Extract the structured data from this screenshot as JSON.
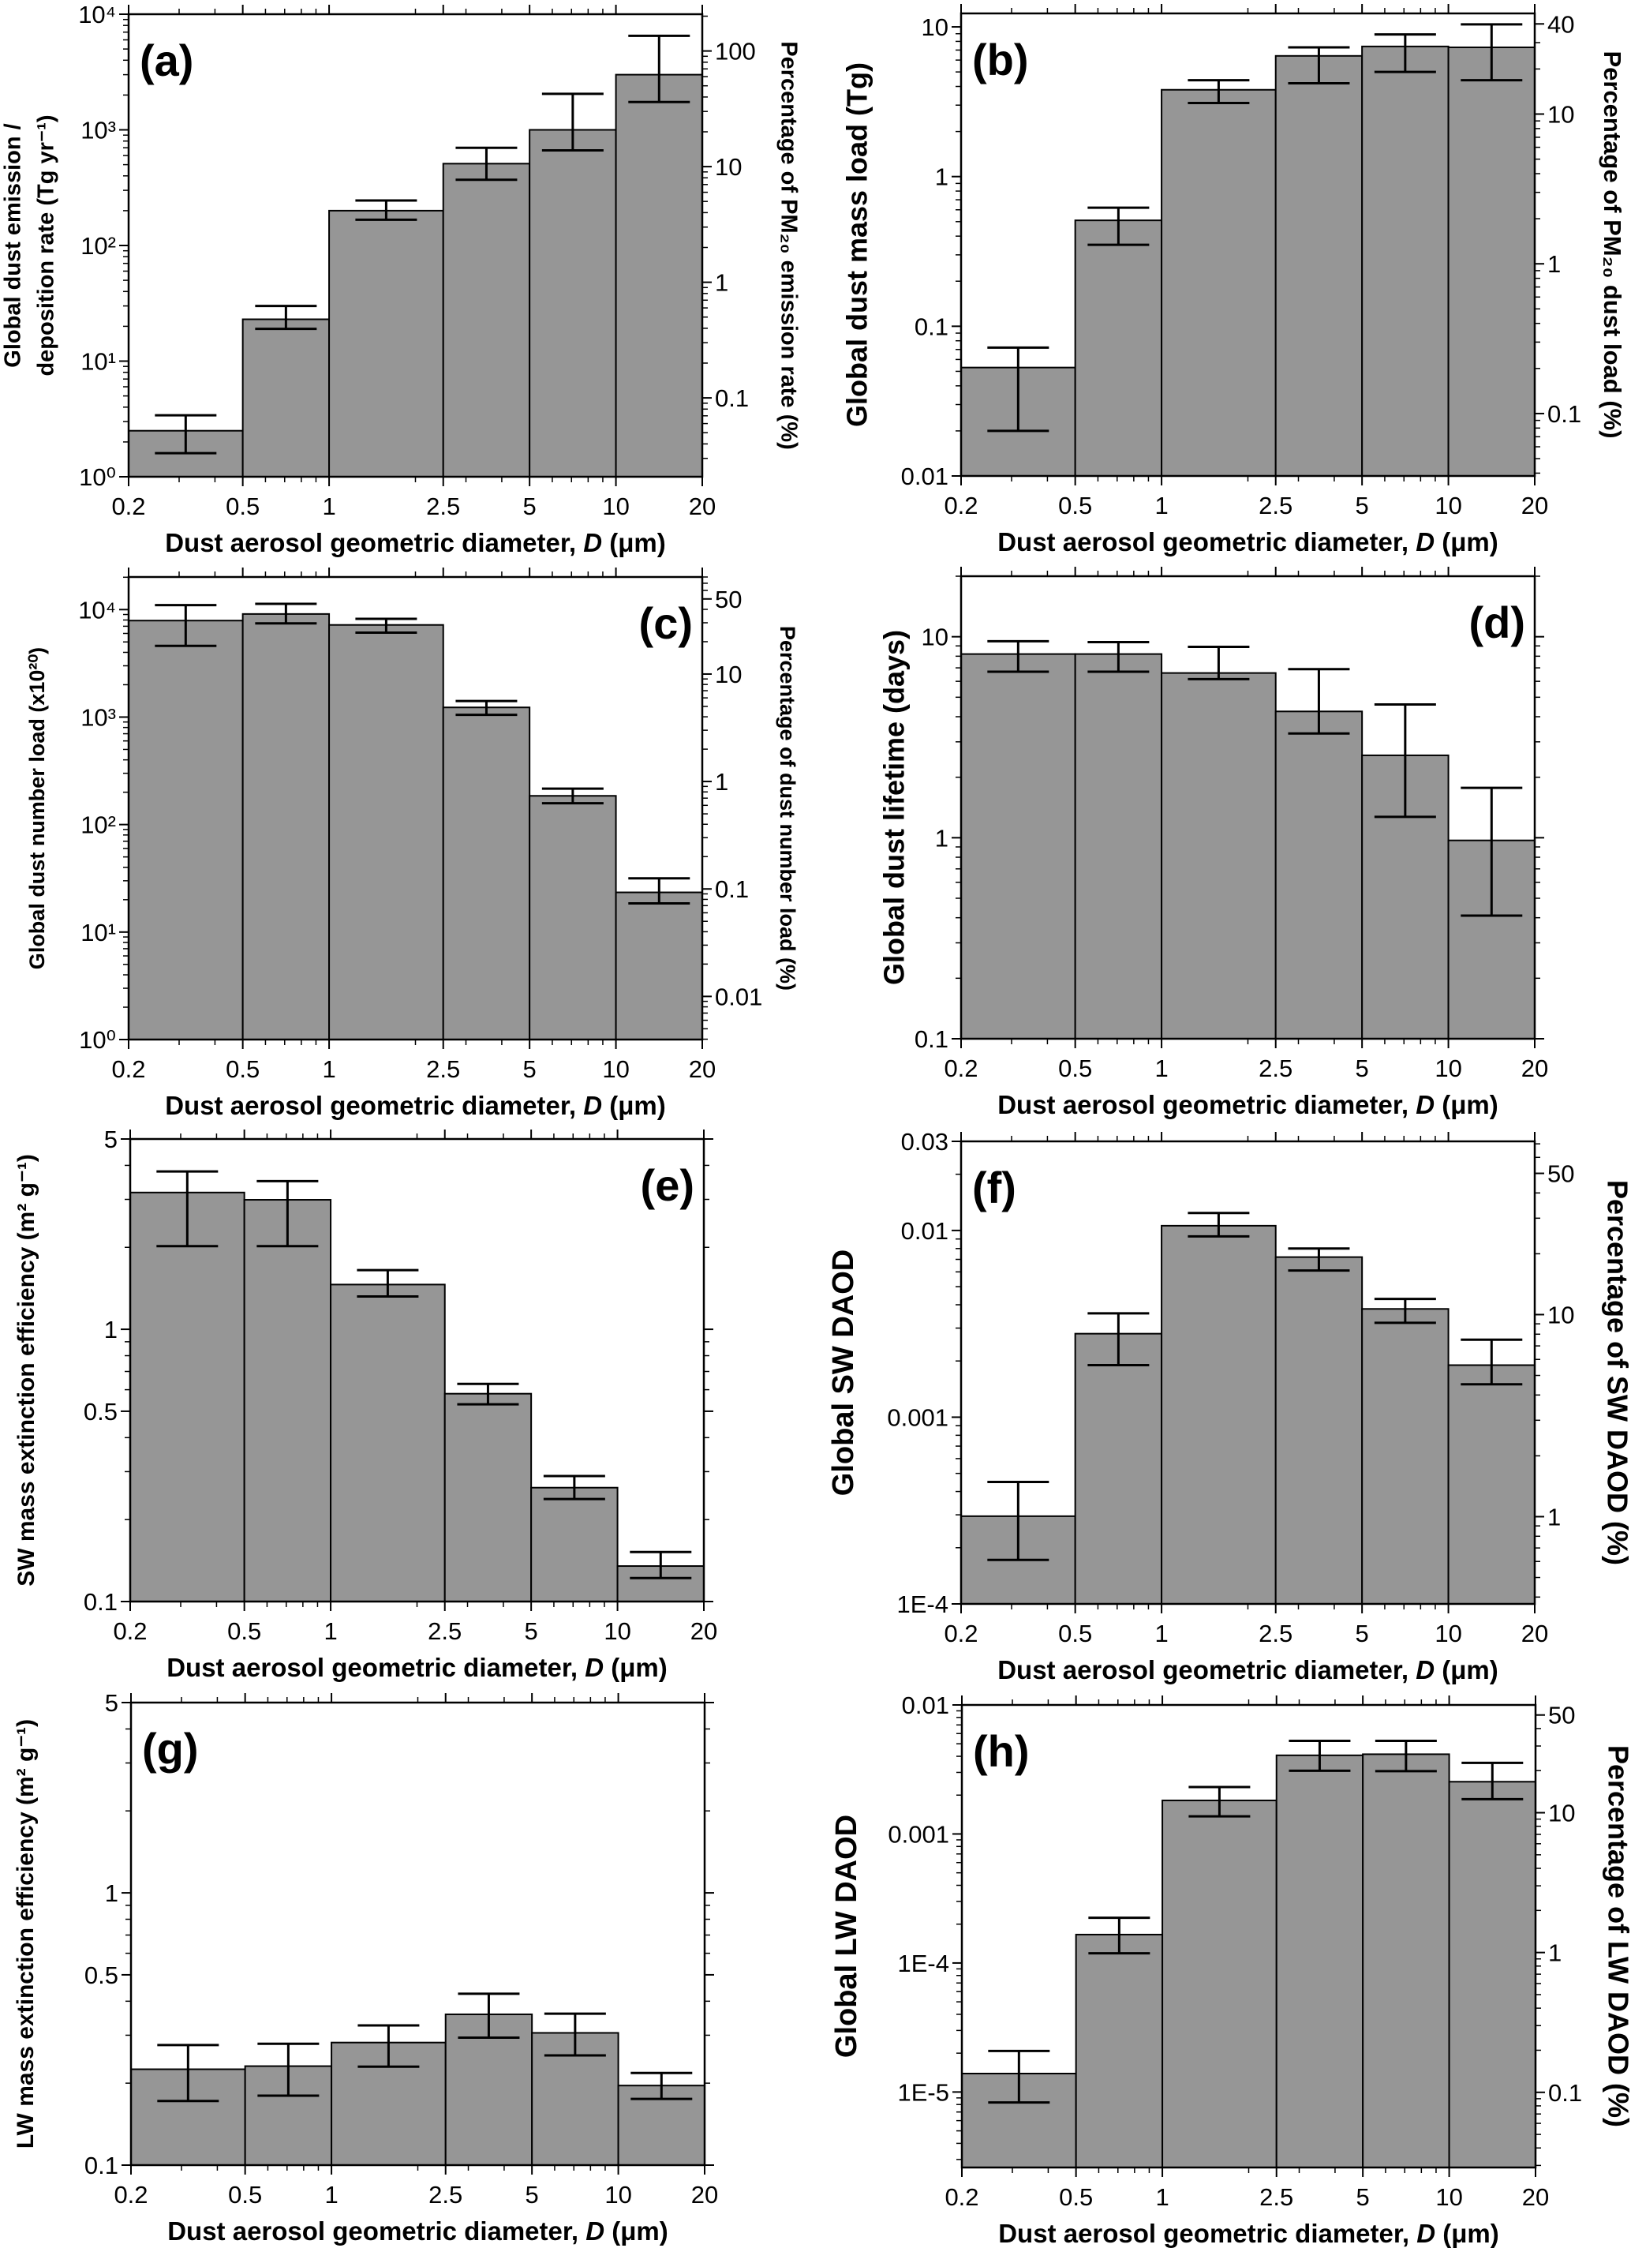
{
  "colors": {
    "bar_fill": "#969696",
    "bar_stroke": "#000000",
    "axis": "#000000",
    "background": "#ffffff"
  },
  "chart_data": [
    {
      "panel": "(a)",
      "type": "bar",
      "label_position": "top-left",
      "bin_edges": [
        0.2,
        0.5,
        1,
        2.5,
        5,
        10,
        20
      ],
      "values": [
        2.5,
        23,
        200,
        510,
        1000,
        3000
      ],
      "err_low": [
        1.6,
        19,
        167,
        370,
        665,
        1740
      ],
      "err_high": [
        3.4,
        30,
        245,
        700,
        2050,
        6500
      ],
      "xlim": [
        0.2,
        20
      ],
      "xscale": "log",
      "xticks": [
        {
          "value": 0.2,
          "label": "0.2"
        },
        {
          "value": 0.5,
          "label": "0.5"
        },
        {
          "value": 1,
          "label": "1"
        },
        {
          "value": 2.5,
          "label": "2.5"
        },
        {
          "value": 5,
          "label": "5"
        },
        {
          "value": 10,
          "label": "10"
        },
        {
          "value": 20,
          "label": "20"
        }
      ],
      "xlabel": [
        {
          "text": "Dust aerosol geometric diameter, ",
          "italic": false
        },
        {
          "text": "D",
          "italic": true
        },
        {
          "text": " (μm)",
          "italic": false
        }
      ],
      "ylabel": [
        "Global dust emission /",
        "deposition rate (Tg yr⁻¹)"
      ],
      "ylim": [
        1,
        10000
      ],
      "yscale": "log",
      "yticks": [
        {
          "value": 1,
          "label": "10⁰"
        },
        {
          "value": 10,
          "label": "10¹"
        },
        {
          "value": 100,
          "label": "10²"
        },
        {
          "value": 1000,
          "label": "10³"
        },
        {
          "value": 10000,
          "label": "10⁴"
        }
      ],
      "y2label": "Percentage of PM₂₀ emission rate (%)",
      "y2lim": [
        0.0208,
        208
      ],
      "y2ticks": [
        {
          "value": 0.1,
          "label": "0.1"
        },
        {
          "value": 1,
          "label": "1"
        },
        {
          "value": 10,
          "label": "10"
        },
        {
          "value": 100,
          "label": "100"
        }
      ]
    },
    {
      "panel": "(b)",
      "type": "bar",
      "label_position": "top-left",
      "bin_edges": [
        0.2,
        0.5,
        1,
        2.5,
        5,
        10,
        20
      ],
      "values": [
        0.053,
        0.51,
        3.8,
        6.4,
        7.4,
        7.3
      ],
      "err_low": [
        0.02,
        0.35,
        3.1,
        4.2,
        5.0,
        4.4
      ],
      "err_high": [
        0.072,
        0.62,
        4.4,
        7.3,
        8.9,
        10.4
      ],
      "xlim": [
        0.2,
        20
      ],
      "xscale": "log",
      "xticks": [
        {
          "value": 0.2,
          "label": "0.2"
        },
        {
          "value": 0.5,
          "label": "0.5"
        },
        {
          "value": 1,
          "label": "1"
        },
        {
          "value": 2.5,
          "label": "2.5"
        },
        {
          "value": 5,
          "label": "5"
        },
        {
          "value": 10,
          "label": "10"
        },
        {
          "value": 20,
          "label": "20"
        }
      ],
      "xlabel": [
        {
          "text": "Dust aerosol geometric diameter, ",
          "italic": false
        },
        {
          "text": "D",
          "italic": true
        },
        {
          "text": " (μm)",
          "italic": false
        }
      ],
      "ylabel": [
        "Global dust mass load (Tg)"
      ],
      "ylim": [
        0.01,
        12.3
      ],
      "yscale": "log",
      "yticks": [
        {
          "value": 0.01,
          "label": "0.01"
        },
        {
          "value": 0.1,
          "label": "0.1"
        },
        {
          "value": 1,
          "label": "1"
        },
        {
          "value": 10,
          "label": "10"
        }
      ],
      "y2label": "Percentage of PM₂₀ dust load (%)",
      "y2lim": [
        0.0383,
        47
      ],
      "y2ticks": [
        {
          "value": 0.1,
          "label": "0.1"
        },
        {
          "value": 1,
          "label": "1"
        },
        {
          "value": 10,
          "label": "10"
        },
        {
          "value": 40,
          "label": "40"
        }
      ]
    },
    {
      "panel": "(c)",
      "type": "bar",
      "label_position": "top-right",
      "bin_edges": [
        0.2,
        0.5,
        1,
        2.5,
        5,
        10,
        20
      ],
      "values": [
        7900,
        9100,
        7200,
        1230,
        185,
        23.4
      ],
      "err_low": [
        4600,
        7450,
        6100,
        1050,
        158,
        18.5
      ],
      "err_high": [
        11000,
        11300,
        8200,
        1410,
        216,
        31.6
      ],
      "xlim": [
        0.2,
        20
      ],
      "xscale": "log",
      "xticks": [
        {
          "value": 0.2,
          "label": "0.2"
        },
        {
          "value": 0.5,
          "label": "0.5"
        },
        {
          "value": 1,
          "label": "1"
        },
        {
          "value": 2.5,
          "label": "2.5"
        },
        {
          "value": 5,
          "label": "5"
        },
        {
          "value": 10,
          "label": "10"
        },
        {
          "value": 20,
          "label": "20"
        }
      ],
      "xlabel": [
        {
          "text": "Dust aerosol geometric diameter, ",
          "italic": false
        },
        {
          "text": "D",
          "italic": true
        },
        {
          "text": " (μm)",
          "italic": false
        }
      ],
      "ylabel": [
        "Global dust number load (x10²⁰)"
      ],
      "ylim": [
        1,
        20100
      ],
      "yscale": "log",
      "yticks": [
        {
          "value": 1,
          "label": "10⁰"
        },
        {
          "value": 10,
          "label": "10¹"
        },
        {
          "value": 100,
          "label": "10²"
        },
        {
          "value": 1000,
          "label": "10³"
        },
        {
          "value": 10000,
          "label": "10⁴"
        }
      ],
      "y2label": "Percentage of dust number load (%)",
      "y2lim": [
        0.00397,
        80
      ],
      "y2ticks": [
        {
          "value": 0.01,
          "label": "0.01"
        },
        {
          "value": 0.1,
          "label": "0.1"
        },
        {
          "value": 1,
          "label": "1"
        },
        {
          "value": 10,
          "label": "10"
        },
        {
          "value": 50,
          "label": "50"
        }
      ]
    },
    {
      "panel": "(d)",
      "type": "bar",
      "label_position": "top-right",
      "bin_edges": [
        0.2,
        0.5,
        1,
        2.5,
        5,
        10,
        20
      ],
      "values": [
        8.2,
        8.2,
        6.6,
        4.25,
        2.57,
        0.97
      ],
      "err_low": [
        6.7,
        6.7,
        6.15,
        3.3,
        1.27,
        0.41
      ],
      "err_high": [
        9.5,
        9.4,
        8.9,
        6.9,
        4.6,
        1.77
      ],
      "xlim": [
        0.2,
        20
      ],
      "xscale": "log",
      "xticks": [
        {
          "value": 0.2,
          "label": "0.2"
        },
        {
          "value": 0.5,
          "label": "0.5"
        },
        {
          "value": 1,
          "label": "1"
        },
        {
          "value": 2.5,
          "label": "2.5"
        },
        {
          "value": 5,
          "label": "5"
        },
        {
          "value": 10,
          "label": "10"
        },
        {
          "value": 20,
          "label": "20"
        }
      ],
      "xlabel": [
        {
          "text": "Dust aerosol geometric diameter, ",
          "italic": false
        },
        {
          "text": "D",
          "italic": true
        },
        {
          "text": " (μm)",
          "italic": false
        }
      ],
      "ylabel": [
        "Global dust lifetime (days)"
      ],
      "ylim": [
        0.1,
        20
      ],
      "yscale": "log",
      "yticks": [
        {
          "value": 0.1,
          "label": "0.1"
        },
        {
          "value": 1,
          "label": "1"
        },
        {
          "value": 10,
          "label": "10"
        }
      ]
    },
    {
      "panel": "(e)",
      "type": "bar",
      "label_position": "top-right",
      "bin_edges": [
        0.2,
        0.5,
        1,
        2.5,
        5,
        10,
        20
      ],
      "values": [
        3.18,
        2.99,
        1.46,
        0.58,
        0.262,
        0.135
      ],
      "err_low": [
        2.02,
        2.02,
        1.32,
        0.53,
        0.238,
        0.122
      ],
      "err_high": [
        3.8,
        3.5,
        1.65,
        0.63,
        0.289,
        0.152
      ],
      "xlim": [
        0.2,
        20
      ],
      "xscale": "log",
      "xticks": [
        {
          "value": 0.2,
          "label": "0.2"
        },
        {
          "value": 0.5,
          "label": "0.5"
        },
        {
          "value": 1,
          "label": "1"
        },
        {
          "value": 2.5,
          "label": "2.5"
        },
        {
          "value": 5,
          "label": "5"
        },
        {
          "value": 10,
          "label": "10"
        },
        {
          "value": 20,
          "label": "20"
        }
      ],
      "xlabel": [
        {
          "text": "Dust aerosol geometric diameter, ",
          "italic": false
        },
        {
          "text": "D",
          "italic": true
        },
        {
          "text": " (μm)",
          "italic": false
        }
      ],
      "ylabel": [
        "SW mass extinction efficiency (m² g⁻¹)"
      ],
      "ylim": [
        0.1,
        5
      ],
      "yscale": "log",
      "yticks": [
        {
          "value": 0.1,
          "label": "0.1"
        },
        {
          "value": 0.5,
          "label": "0.5"
        },
        {
          "value": 1,
          "label": "1"
        },
        {
          "value": 5,
          "label": "5"
        }
      ]
    },
    {
      "panel": "(f)",
      "type": "bar",
      "label_position": "top-left",
      "bin_edges": [
        0.2,
        0.5,
        1,
        2.5,
        5,
        10,
        20
      ],
      "values": [
        0.000295,
        0.0028,
        0.0106,
        0.0072,
        0.0038,
        0.0019
      ],
      "err_low": [
        0.000172,
        0.0019,
        0.0093,
        0.0061,
        0.0032,
        0.0015
      ],
      "err_high": [
        0.00045,
        0.0036,
        0.0124,
        0.008,
        0.0043,
        0.0026
      ],
      "xlim": [
        0.2,
        20
      ],
      "xscale": "log",
      "xticks": [
        {
          "value": 0.2,
          "label": "0.2"
        },
        {
          "value": 0.5,
          "label": "0.5"
        },
        {
          "value": 1,
          "label": "1"
        },
        {
          "value": 2.5,
          "label": "2.5"
        },
        {
          "value": 5,
          "label": "5"
        },
        {
          "value": 10,
          "label": "10"
        },
        {
          "value": 20,
          "label": "20"
        }
      ],
      "xlabel": [
        {
          "text": "Dust aerosol geometric diameter, ",
          "italic": false
        },
        {
          "text": "D",
          "italic": true
        },
        {
          "text": " (μm)",
          "italic": false
        }
      ],
      "ylabel": [
        "Global SW DAOD"
      ],
      "ylim": [
        0.0001,
        0.03
      ],
      "yscale": "log",
      "yticks": [
        {
          "value": 0.0001,
          "label": "1E-4"
        },
        {
          "value": 0.001,
          "label": "0.001"
        },
        {
          "value": 0.01,
          "label": "0.01"
        },
        {
          "value": 0.03,
          "label": "0.03"
        }
      ],
      "y2label": "Percentage of SW DAOD (%)",
      "y2lim": [
        0.37,
        72
      ],
      "y2ticks": [
        {
          "value": 1,
          "label": "1"
        },
        {
          "value": 10,
          "label": "10"
        },
        {
          "value": 50,
          "label": "50"
        }
      ]
    },
    {
      "panel": "(g)",
      "type": "bar",
      "label_position": "top-left",
      "bin_edges": [
        0.2,
        0.5,
        1,
        2.5,
        5,
        10,
        20
      ],
      "values": [
        0.225,
        0.231,
        0.282,
        0.358,
        0.306,
        0.196
      ],
      "err_low": [
        0.172,
        0.18,
        0.23,
        0.294,
        0.253,
        0.175
      ],
      "err_high": [
        0.276,
        0.279,
        0.326,
        0.426,
        0.36,
        0.218
      ],
      "xlim": [
        0.2,
        20
      ],
      "xscale": "log",
      "xticks": [
        {
          "value": 0.2,
          "label": "0.2"
        },
        {
          "value": 0.5,
          "label": "0.5"
        },
        {
          "value": 1,
          "label": "1"
        },
        {
          "value": 2.5,
          "label": "2.5"
        },
        {
          "value": 5,
          "label": "5"
        },
        {
          "value": 10,
          "label": "10"
        },
        {
          "value": 20,
          "label": "20"
        }
      ],
      "xlabel": [
        {
          "text": "Dust aerosol geometric diameter, ",
          "italic": false
        },
        {
          "text": "D",
          "italic": true
        },
        {
          "text": " (μm)",
          "italic": false
        }
      ],
      "ylabel": [
        "LW mass extinction efficiency (m² g⁻¹)"
      ],
      "ylim": [
        0.1,
        5
      ],
      "yscale": "log",
      "yticks": [
        {
          "value": 0.1,
          "label": "0.1"
        },
        {
          "value": 0.5,
          "label": "0.5"
        },
        {
          "value": 1,
          "label": "1"
        },
        {
          "value": 5,
          "label": "5"
        }
      ]
    },
    {
      "panel": "(h)",
      "type": "bar",
      "label_position": "top-left",
      "bin_edges": [
        0.2,
        0.5,
        1,
        2.5,
        5,
        10,
        20
      ],
      "values": [
        1.39e-05,
        0.000166,
        0.00182,
        0.00407,
        0.00415,
        0.00254
      ],
      "err_low": [
        8.3e-06,
        0.000119,
        0.00137,
        0.00309,
        0.00307,
        0.00186
      ],
      "err_high": [
        2.08e-05,
        0.000224,
        0.00231,
        0.00527,
        0.00527,
        0.00356
      ],
      "xlim": [
        0.2,
        20
      ],
      "xscale": "log",
      "xticks": [
        {
          "value": 0.2,
          "label": "0.2"
        },
        {
          "value": 0.5,
          "label": "0.5"
        },
        {
          "value": 1,
          "label": "1"
        },
        {
          "value": 2.5,
          "label": "2.5"
        },
        {
          "value": 5,
          "label": "5"
        },
        {
          "value": 10,
          "label": "10"
        },
        {
          "value": 20,
          "label": "20"
        }
      ],
      "xlabel": [
        {
          "text": "Dust aerosol geometric diameter, ",
          "italic": false
        },
        {
          "text": "D",
          "italic": true
        },
        {
          "text": " (μm)",
          "italic": false
        }
      ],
      "ylabel": [
        "Global LW DAOD"
      ],
      "ylim": [
        2.6e-06,
        0.01
      ],
      "yscale": "log",
      "yticks": [
        {
          "value": 1e-05,
          "label": "1E-5"
        },
        {
          "value": 0.0001,
          "label": "1E-4"
        },
        {
          "value": 0.001,
          "label": "0.001"
        },
        {
          "value": 0.01,
          "label": "0.01"
        }
      ],
      "y2label": "Percentage of LW DAOD (%)",
      "y2lim": [
        0.029,
        59
      ],
      "y2ticks": [
        {
          "value": 0.1,
          "label": "0.1"
        },
        {
          "value": 1,
          "label": "1"
        },
        {
          "value": 10,
          "label": "10"
        },
        {
          "value": 50,
          "label": "50"
        }
      ]
    }
  ]
}
